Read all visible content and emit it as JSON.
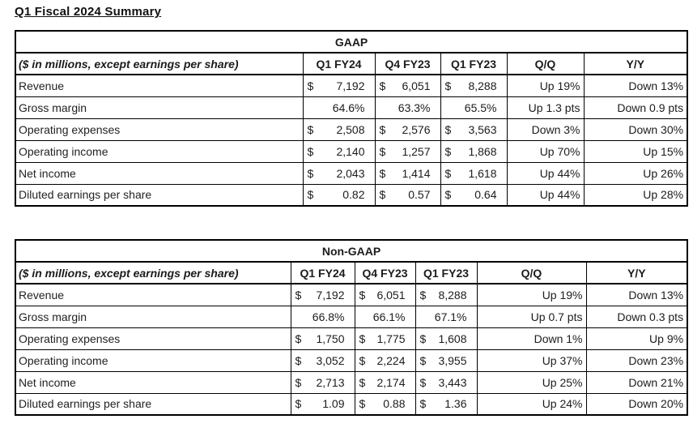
{
  "page": {
    "title": "Q1 Fiscal 2024 Summary"
  },
  "currency_symbol": "$",
  "tables": [
    {
      "group_header": "GAAP",
      "units_note": "($ in millions, except earnings per share)",
      "columns": [
        "Q1 FY24",
        "Q4 FY23",
        "Q1 FY23",
        "Q/Q",
        "Y/Y"
      ],
      "rows": [
        {
          "label": "Revenue",
          "currency": true,
          "values": [
            "7,192",
            "6,051",
            "8,288"
          ],
          "qq": "Up 19%",
          "yy": "Down 13%"
        },
        {
          "label": "Gross margin",
          "currency": false,
          "values": [
            "64.6%",
            "63.3%",
            "65.5%"
          ],
          "qq": "Up 1.3 pts",
          "yy": "Down 0.9 pts"
        },
        {
          "label": "Operating expenses",
          "currency": true,
          "values": [
            "2,508",
            "2,576",
            "3,563"
          ],
          "qq": "Down 3%",
          "yy": "Down 30%"
        },
        {
          "label": "Operating income",
          "currency": true,
          "values": [
            "2,140",
            "1,257",
            "1,868"
          ],
          "qq": "Up 70%",
          "yy": "Up 15%"
        },
        {
          "label": "Net income",
          "currency": true,
          "values": [
            "2,043",
            "1,414",
            "1,618"
          ],
          "qq": "Up 44%",
          "yy": "Up 26%"
        },
        {
          "label": "Diluted earnings per share",
          "currency": true,
          "values": [
            "0.82",
            "0.57",
            "0.64"
          ],
          "qq": "Up 44%",
          "yy": "Up 28%"
        }
      ]
    },
    {
      "group_header": "Non-GAAP",
      "units_note": "($ in millions, except earnings per share)",
      "columns": [
        "Q1 FY24",
        "Q4 FY23",
        "Q1 FY23",
        "Q/Q",
        "Y/Y"
      ],
      "rows": [
        {
          "label": "Revenue",
          "currency": true,
          "values": [
            "7,192",
            "6,051",
            "8,288"
          ],
          "qq": "Up 19%",
          "yy": "Down 13%"
        },
        {
          "label": "Gross margin",
          "currency": false,
          "values": [
            "66.8%",
            "66.1%",
            "67.1%"
          ],
          "qq": "Up 0.7 pts",
          "yy": "Down 0.3 pts"
        },
        {
          "label": "Operating expenses",
          "currency": true,
          "values": [
            "1,750",
            "1,775",
            "1,608"
          ],
          "qq": "Down 1%",
          "yy": "Up 9%"
        },
        {
          "label": "Operating income",
          "currency": true,
          "values": [
            "3,052",
            "2,224",
            "3,955"
          ],
          "qq": "Up 37%",
          "yy": "Down 23%"
        },
        {
          "label": "Net income",
          "currency": true,
          "values": [
            "2,713",
            "2,174",
            "3,443"
          ],
          "qq": "Up 25%",
          "yy": "Down 21%"
        },
        {
          "label": "Diluted earnings per share",
          "currency": true,
          "values": [
            "1.09",
            "0.88",
            "1.36"
          ],
          "qq": "Up 24%",
          "yy": "Down 20%"
        }
      ]
    }
  ]
}
